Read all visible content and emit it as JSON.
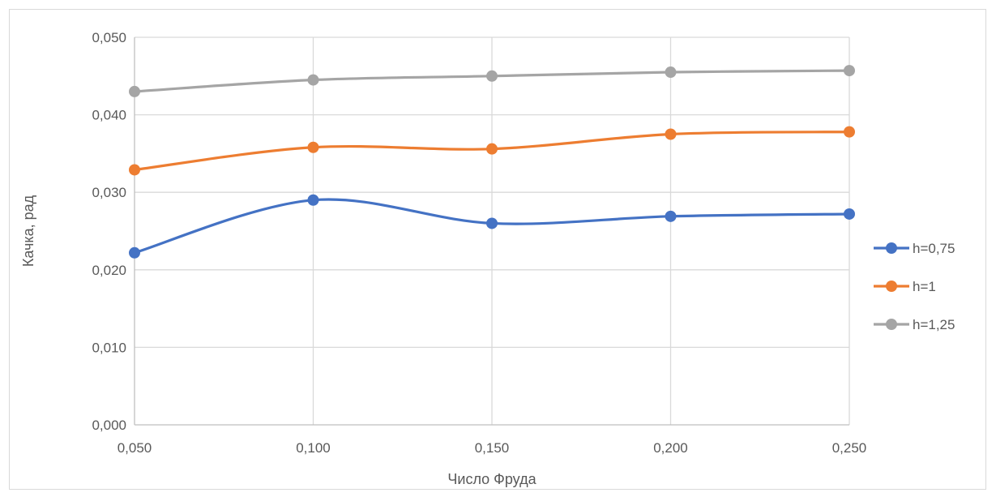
{
  "chart_data": {
    "type": "line",
    "title": "",
    "xlabel": "Число Фруда",
    "ylabel": "Качка, рад",
    "x": [
      0.05,
      0.1,
      0.15,
      0.2,
      0.25
    ],
    "x_tick_labels": [
      "0,050",
      "0,100",
      "0,150",
      "0,200",
      "0,250"
    ],
    "y_tick_labels": [
      "0,000",
      "0,010",
      "0,020",
      "0,030",
      "0,040",
      "0,050"
    ],
    "ylim": [
      0,
      0.05
    ],
    "grid": true,
    "smoothed": true,
    "legend_position": "right",
    "series": [
      {
        "name": "h=0,75",
        "color": "#4472c4",
        "values": [
          0.0222,
          0.029,
          0.026,
          0.0269,
          0.0272
        ]
      },
      {
        "name": "h=1",
        "color": "#ed7d31",
        "values": [
          0.0329,
          0.0358,
          0.0356,
          0.0375,
          0.0378
        ]
      },
      {
        "name": "h=1,25",
        "color": "#a5a5a5",
        "values": [
          0.043,
          0.0445,
          0.045,
          0.0455,
          0.0457
        ]
      }
    ]
  }
}
